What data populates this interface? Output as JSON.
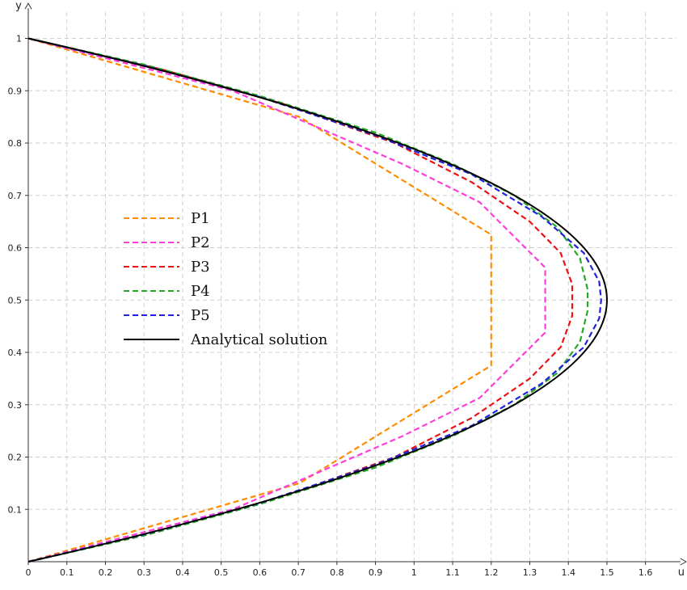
{
  "chart_data": {
    "type": "line",
    "xlabel": "u",
    "ylabel": "y",
    "xlim": [
      0,
      1.68
    ],
    "ylim": [
      0,
      1.05
    ],
    "x_ticks": [
      "0",
      "0.1",
      "0.2",
      "0.3",
      "0.4",
      "0.5",
      "0.6",
      "0.7",
      "0.8",
      "0.9",
      "1",
      "1.1",
      "1.2",
      "1.3",
      "1.4",
      "1.5",
      "1.6"
    ],
    "y_ticks": [
      "0.1",
      "0.2",
      "0.3",
      "0.4",
      "0.5",
      "0.6",
      "0.7",
      "0.8",
      "0.9",
      "1"
    ],
    "grid": true,
    "legend_position": "center-left",
    "series": [
      {
        "name": "P1",
        "color": "#ff8c00",
        "style": "dashed",
        "points": [
          [
            0,
            0
          ],
          [
            0.703,
            0.15
          ],
          [
            1.2,
            0.375
          ],
          [
            1.2,
            0.625
          ],
          [
            0.703,
            0.85
          ],
          [
            0,
            1
          ]
        ]
      },
      {
        "name": "P2",
        "color": "#ff3cdc",
        "style": "dashed",
        "points": [
          [
            0,
            0
          ],
          [
            0.53,
            0.1
          ],
          [
            0.97,
            0.24
          ],
          [
            1.17,
            0.313
          ],
          [
            1.34,
            0.438
          ],
          [
            1.34,
            0.562
          ],
          [
            1.17,
            0.687
          ],
          [
            0.97,
            0.76
          ],
          [
            0.53,
            0.9
          ],
          [
            0,
            1
          ]
        ]
      },
      {
        "name": "P3",
        "color": "#ee1111",
        "style": "dashed",
        "points": [
          [
            0,
            0
          ],
          [
            0.35,
            0.06
          ],
          [
            0.66,
            0.125
          ],
          [
            0.95,
            0.2
          ],
          [
            1.15,
            0.275
          ],
          [
            1.3,
            0.35
          ],
          [
            1.38,
            0.41
          ],
          [
            1.41,
            0.47
          ],
          [
            1.41,
            0.53
          ],
          [
            1.38,
            0.59
          ],
          [
            1.3,
            0.65
          ],
          [
            1.15,
            0.725
          ],
          [
            0.95,
            0.8
          ],
          [
            0.66,
            0.875
          ],
          [
            0.35,
            0.94
          ],
          [
            0,
            1
          ]
        ]
      },
      {
        "name": "P4",
        "color": "#22aa22",
        "style": "dashed",
        "points": [
          [
            0,
            0
          ],
          [
            0.3,
            0.05
          ],
          [
            0.6,
            0.11
          ],
          [
            0.9,
            0.18
          ],
          [
            1.1,
            0.24
          ],
          [
            1.26,
            0.3
          ],
          [
            1.37,
            0.36
          ],
          [
            1.43,
            0.42
          ],
          [
            1.45,
            0.48
          ],
          [
            1.45,
            0.52
          ],
          [
            1.43,
            0.58
          ],
          [
            1.37,
            0.64
          ],
          [
            1.26,
            0.7
          ],
          [
            1.1,
            0.76
          ],
          [
            0.9,
            0.82
          ],
          [
            0.6,
            0.89
          ],
          [
            0.3,
            0.95
          ],
          [
            0,
            1
          ]
        ]
      },
      {
        "name": "P5",
        "color": "#2222dd",
        "style": "dashed",
        "points": [
          [
            0,
            0
          ],
          [
            0.3,
            0.052
          ],
          [
            0.6,
            0.112
          ],
          [
            0.9,
            0.185
          ],
          [
            1.15,
            0.26
          ],
          [
            1.33,
            0.34
          ],
          [
            1.44,
            0.41
          ],
          [
            1.48,
            0.465
          ],
          [
            1.485,
            0.5
          ],
          [
            1.48,
            0.535
          ],
          [
            1.44,
            0.59
          ],
          [
            1.33,
            0.66
          ],
          [
            1.15,
            0.74
          ],
          [
            0.9,
            0.815
          ],
          [
            0.6,
            0.888
          ],
          [
            0.3,
            0.948
          ],
          [
            0,
            1
          ]
        ]
      },
      {
        "name": "Analytical solution",
        "color": "#000000",
        "style": "solid",
        "function": "6*y*(1-y)",
        "y_range": [
          0,
          1
        ]
      }
    ]
  }
}
